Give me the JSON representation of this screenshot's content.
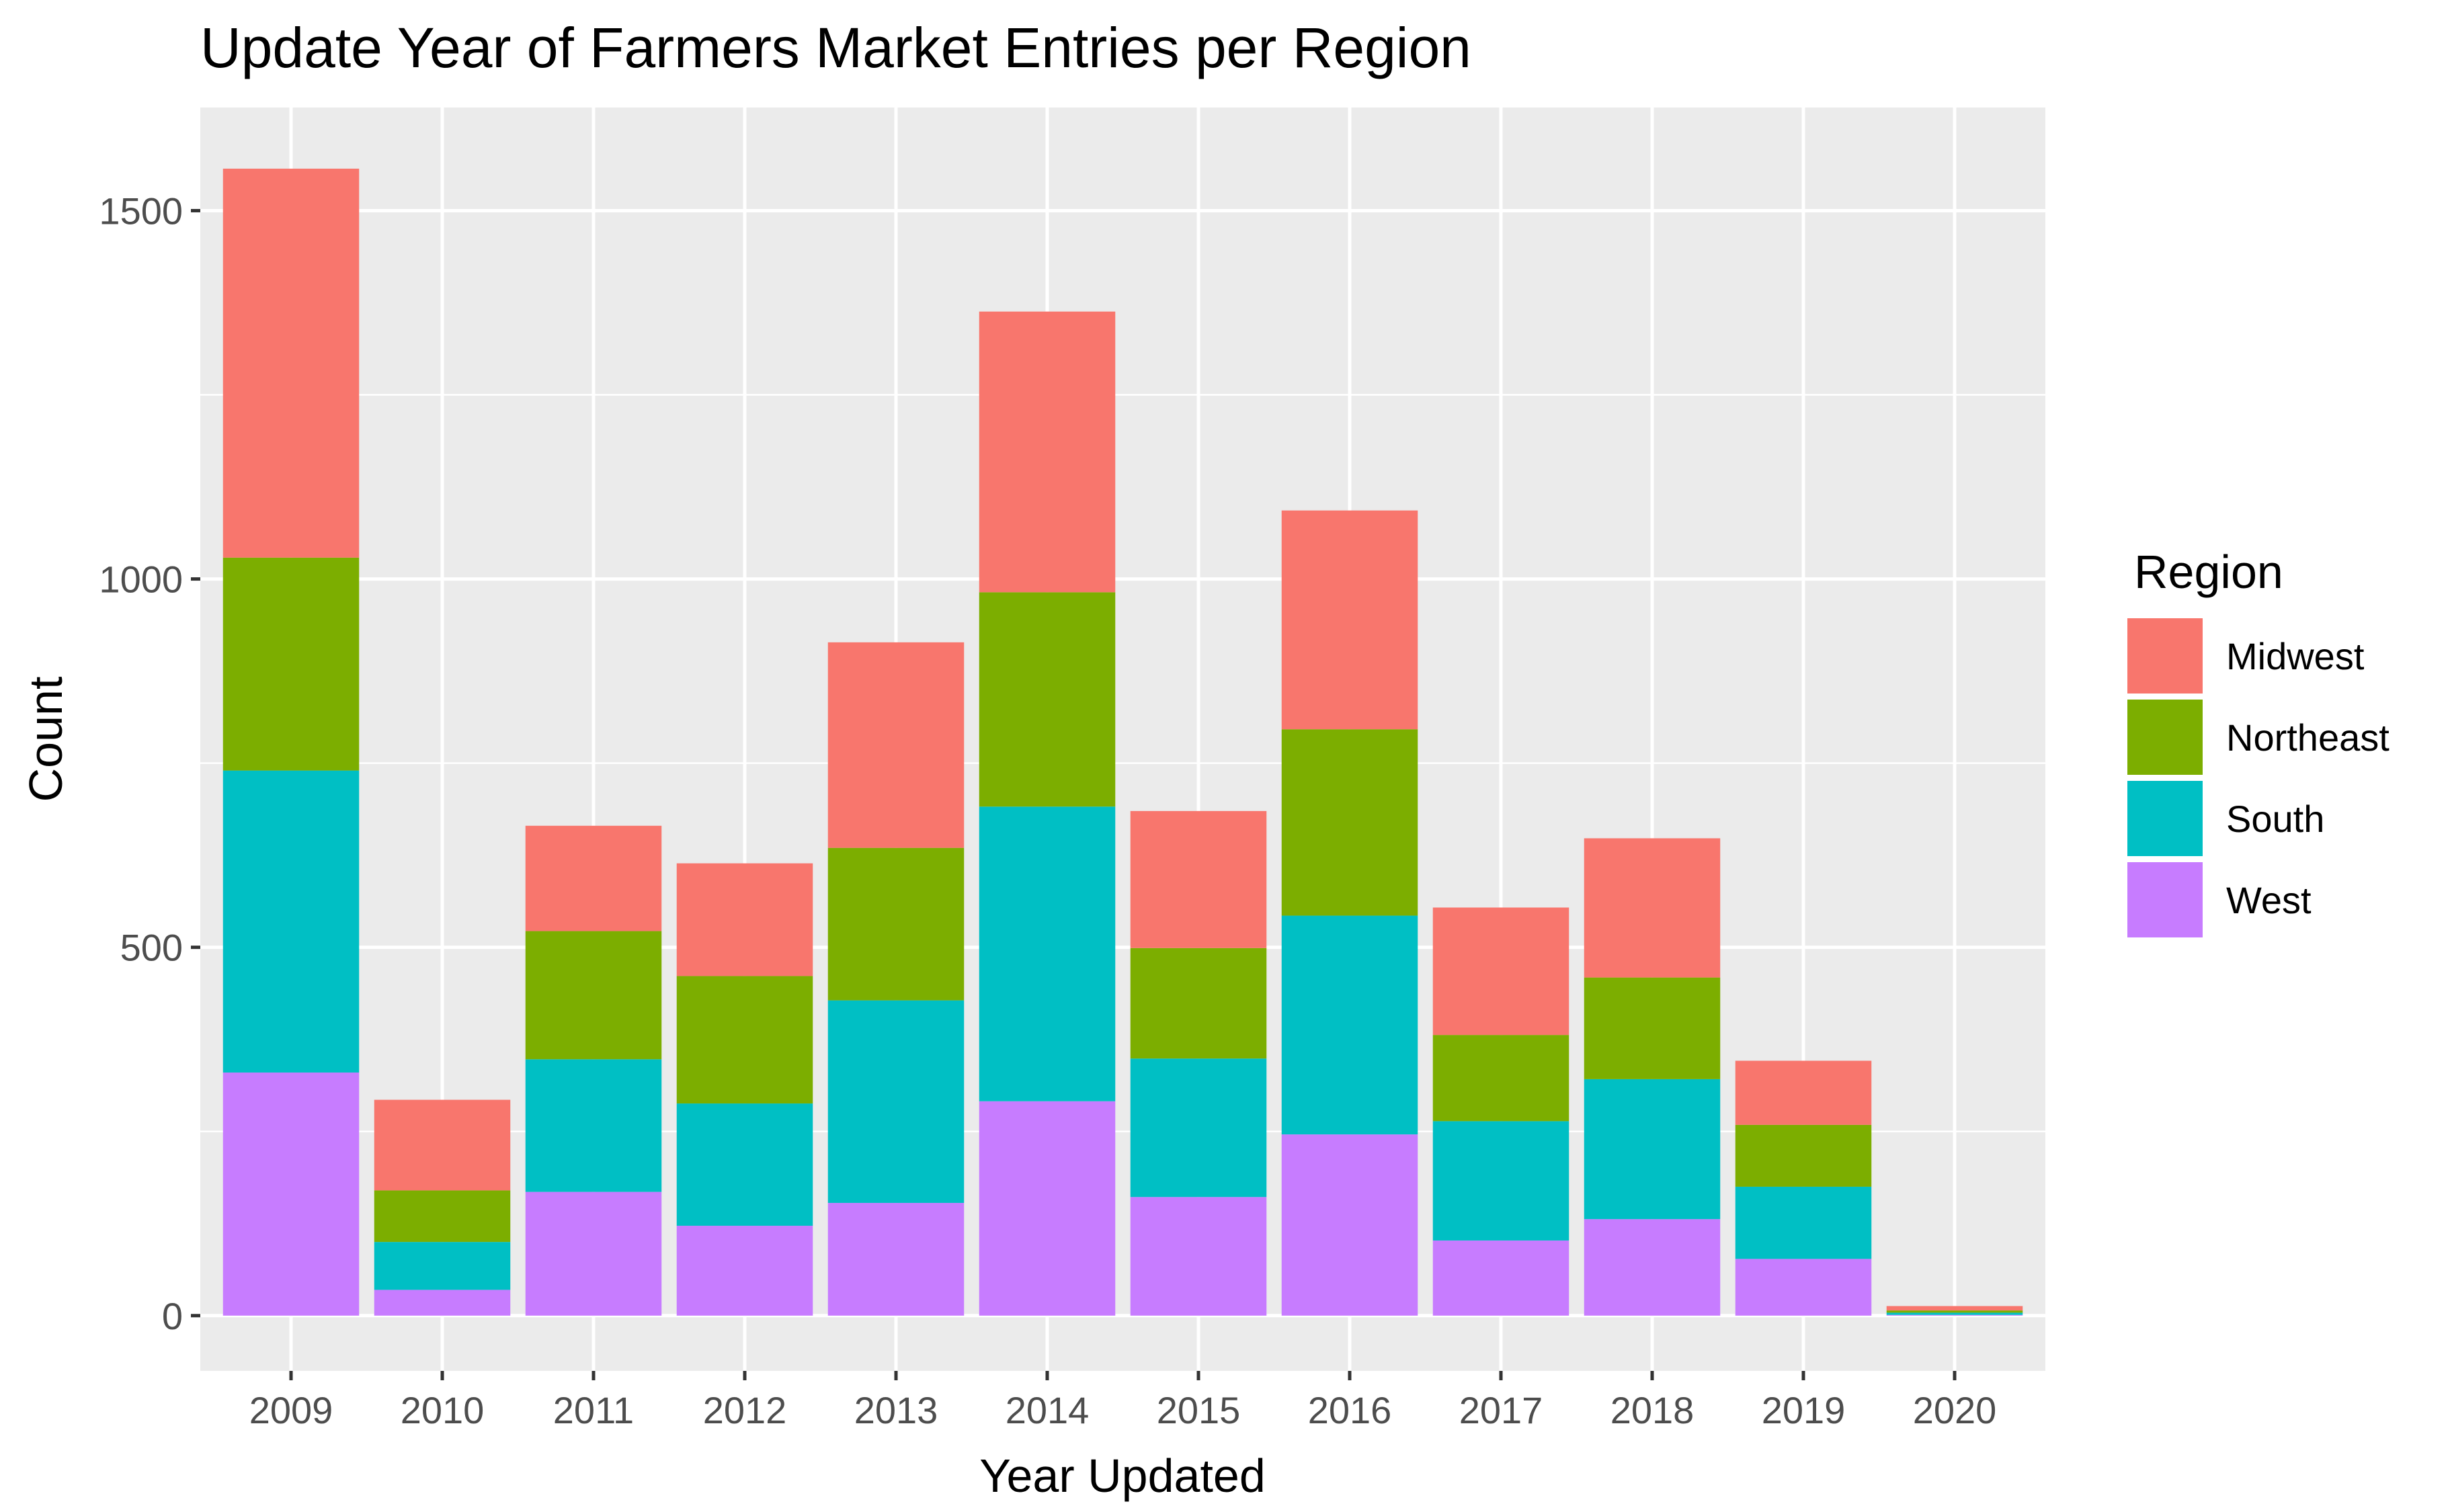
{
  "chart_data": {
    "type": "bar",
    "stacked": true,
    "title": "Update Year of Farmers Market Entries per Region",
    "xlabel": "Year Updated",
    "ylabel": "Count",
    "categories": [
      "2009",
      "2010",
      "2011",
      "2012",
      "2013",
      "2014",
      "2015",
      "2016",
      "2017",
      "2018",
      "2019",
      "2020"
    ],
    "ylim": [
      -75,
      1640
    ],
    "yticks": [
      0,
      500,
      1000,
      1500
    ],
    "grid": true,
    "legend": {
      "title": "Region",
      "position": "right"
    },
    "series": [
      {
        "name": "West",
        "color": "#C77CFF",
        "values": [
          330,
          35,
          168,
          122,
          153,
          291,
          161,
          246,
          102,
          131,
          77,
          1
        ]
      },
      {
        "name": "South",
        "color": "#00BFC4",
        "values": [
          410,
          65,
          180,
          166,
          275,
          400,
          188,
          297,
          162,
          190,
          98,
          3
        ]
      },
      {
        "name": "Northeast",
        "color": "#7CAE00",
        "values": [
          289,
          70,
          174,
          173,
          207,
          291,
          150,
          253,
          117,
          138,
          84,
          3
        ]
      },
      {
        "name": "Midwest",
        "color": "#F8766D",
        "values": [
          528,
          123,
          143,
          153,
          279,
          381,
          186,
          297,
          173,
          189,
          87,
          6
        ]
      }
    ]
  }
}
